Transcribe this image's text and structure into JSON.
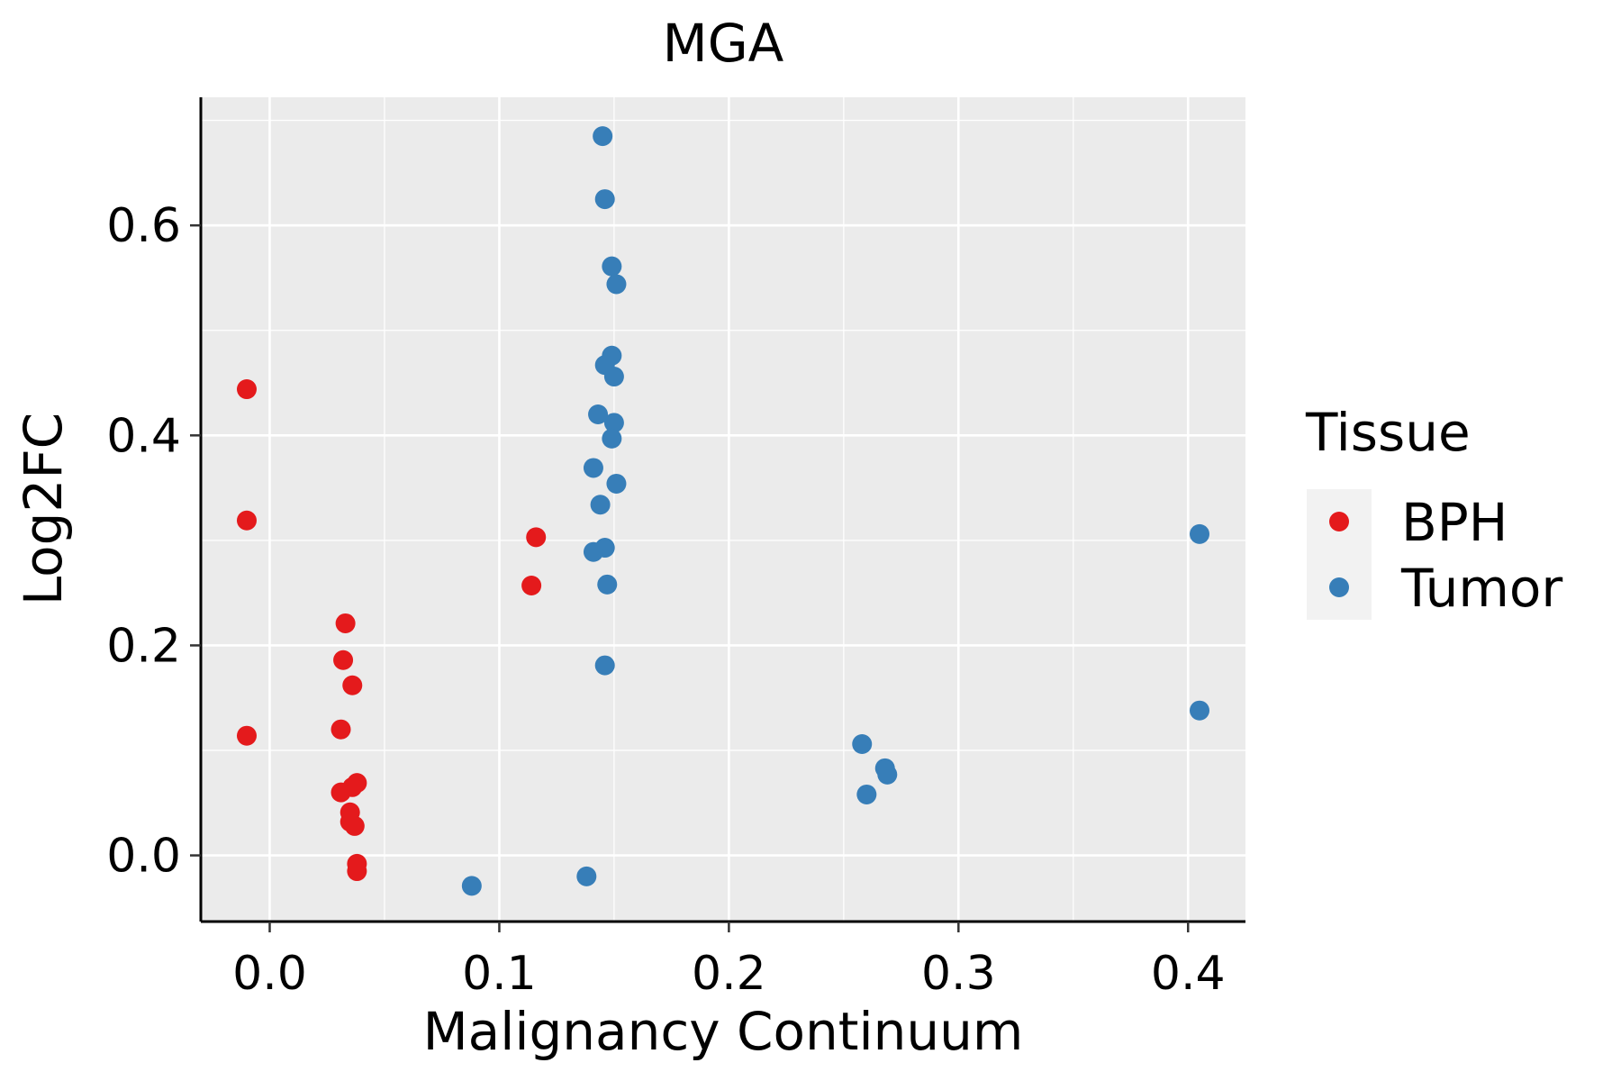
{
  "chart_data": {
    "type": "scatter",
    "title": "MGA",
    "xlabel": "Malignancy Continuum",
    "ylabel": "Log2FC",
    "xlim": [
      -0.03,
      0.425
    ],
    "ylim": [
      -0.063,
      0.722
    ],
    "x_ticks": [
      0.0,
      0.1,
      0.2,
      0.3,
      0.4
    ],
    "x_tick_labels": [
      "0.0",
      "0.1",
      "0.2",
      "0.3",
      "0.4"
    ],
    "y_ticks": [
      0.0,
      0.2,
      0.4,
      0.6
    ],
    "y_tick_labels": [
      "0.0",
      "0.2",
      "0.4",
      "0.6"
    ],
    "grid": true,
    "legend": {
      "title": "Tissue",
      "position": "right"
    },
    "series": [
      {
        "name": "BPH",
        "color": "#E41A1C",
        "points": [
          {
            "x": -0.01,
            "y": 0.444
          },
          {
            "x": -0.01,
            "y": 0.319
          },
          {
            "x": -0.01,
            "y": 0.114
          },
          {
            "x": 0.033,
            "y": 0.221
          },
          {
            "x": 0.032,
            "y": 0.186
          },
          {
            "x": 0.036,
            "y": 0.162
          },
          {
            "x": 0.031,
            "y": 0.12
          },
          {
            "x": 0.038,
            "y": 0.069
          },
          {
            "x": 0.036,
            "y": 0.065
          },
          {
            "x": 0.031,
            "y": 0.06
          },
          {
            "x": 0.035,
            "y": 0.041
          },
          {
            "x": 0.035,
            "y": 0.032
          },
          {
            "x": 0.037,
            "y": 0.028
          },
          {
            "x": 0.038,
            "y": -0.008
          },
          {
            "x": 0.038,
            "y": -0.015
          },
          {
            "x": 0.116,
            "y": 0.303
          },
          {
            "x": 0.114,
            "y": 0.257
          }
        ]
      },
      {
        "name": "Tumor",
        "color": "#377EB8",
        "points": [
          {
            "x": 0.145,
            "y": 0.685
          },
          {
            "x": 0.146,
            "y": 0.625
          },
          {
            "x": 0.149,
            "y": 0.561
          },
          {
            "x": 0.151,
            "y": 0.544
          },
          {
            "x": 0.149,
            "y": 0.476
          },
          {
            "x": 0.146,
            "y": 0.467
          },
          {
            "x": 0.15,
            "y": 0.456
          },
          {
            "x": 0.143,
            "y": 0.42
          },
          {
            "x": 0.15,
            "y": 0.412
          },
          {
            "x": 0.149,
            "y": 0.397
          },
          {
            "x": 0.141,
            "y": 0.369
          },
          {
            "x": 0.151,
            "y": 0.354
          },
          {
            "x": 0.144,
            "y": 0.334
          },
          {
            "x": 0.146,
            "y": 0.293
          },
          {
            "x": 0.141,
            "y": 0.289
          },
          {
            "x": 0.147,
            "y": 0.258
          },
          {
            "x": 0.146,
            "y": 0.181
          },
          {
            "x": 0.405,
            "y": 0.306
          },
          {
            "x": 0.405,
            "y": 0.138
          },
          {
            "x": 0.258,
            "y": 0.106
          },
          {
            "x": 0.268,
            "y": 0.083
          },
          {
            "x": 0.269,
            "y": 0.077
          },
          {
            "x": 0.26,
            "y": 0.058
          },
          {
            "x": 0.088,
            "y": -0.029
          },
          {
            "x": 0.138,
            "y": -0.02
          }
        ]
      }
    ]
  }
}
